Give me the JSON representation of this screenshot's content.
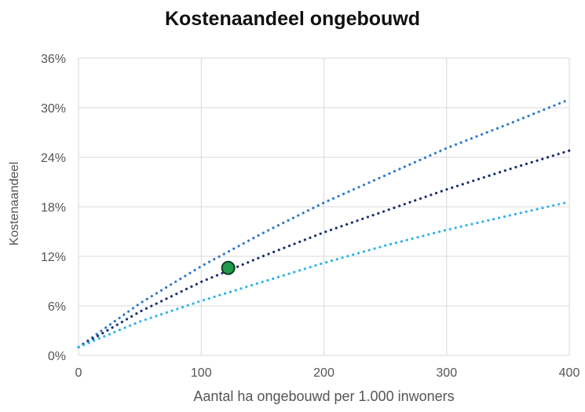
{
  "chart_data": {
    "type": "line",
    "title": "Kostenaandeel ongebouwd",
    "xlabel": "Aantal ha ongebouwd per 1.000 inwoners",
    "ylabel": "Kostenaandeel",
    "xlim": [
      0,
      400
    ],
    "ylim": [
      0,
      0.36
    ],
    "xticks": [
      0,
      100,
      200,
      300,
      400
    ],
    "xtick_labels": [
      "0",
      "100",
      "200",
      "300",
      "400"
    ],
    "yticks": [
      0,
      0.06,
      0.12,
      0.18,
      0.24,
      0.3,
      0.36
    ],
    "ytick_labels": [
      "0%",
      "6%",
      "12%",
      "18%",
      "24%",
      "30%",
      "36%"
    ],
    "grid": true,
    "series": [
      {
        "color": "#2e7bcb",
        "style": "dotted",
        "x": [
          0,
          50,
          100,
          150,
          200,
          250,
          300,
          350,
          400
        ],
        "values": [
          0.01,
          0.063,
          0.108,
          0.148,
          0.185,
          0.218,
          0.251,
          0.28,
          0.31
        ]
      },
      {
        "color": "#1c2f6e",
        "style": "dotted",
        "x": [
          0,
          50,
          100,
          150,
          200,
          250,
          300,
          350,
          400
        ],
        "values": [
          0.01,
          0.053,
          0.089,
          0.12,
          0.149,
          0.175,
          0.201,
          0.225,
          0.248
        ]
      },
      {
        "color": "#2fb3ec",
        "style": "dotted",
        "x": [
          0,
          50,
          100,
          150,
          200,
          250,
          300,
          350,
          400
        ],
        "values": [
          0.01,
          0.041,
          0.066,
          0.089,
          0.112,
          0.133,
          0.152,
          0.169,
          0.186
        ]
      }
    ],
    "highlight_point": {
      "x": 122,
      "y": 0.106,
      "color": "#1e9a4a"
    }
  }
}
